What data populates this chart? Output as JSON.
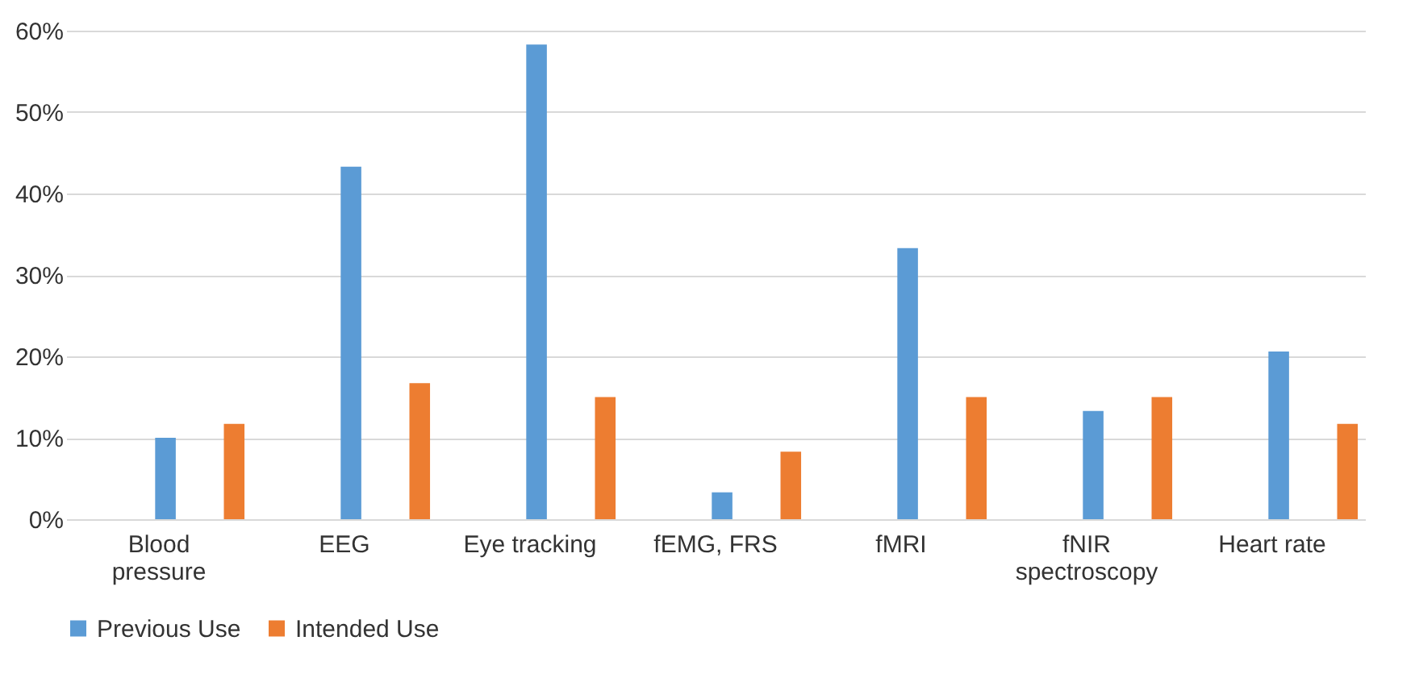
{
  "chart_data": {
    "type": "bar",
    "categories": [
      "Blood pressure",
      "EEG",
      "Eye tracking",
      "fEMG, FRS",
      "fMRI",
      "fNIR spectroscopy",
      "Heart rate"
    ],
    "series": [
      {
        "name": "Previous Use",
        "color": "#5b9bd5",
        "values": [
          10,
          43.3,
          58.3,
          3.3,
          33.3,
          13.3,
          20.6
        ]
      },
      {
        "name": "Intended Use",
        "color": "#ed7d31",
        "values": [
          11.7,
          16.7,
          15,
          8.3,
          15,
          15,
          11.7
        ]
      }
    ],
    "ylim": [
      0,
      60
    ],
    "yticks": [
      {
        "value": 0,
        "label": "0%"
      },
      {
        "value": 10,
        "label": "10%"
      },
      {
        "value": 20,
        "label": "20%"
      },
      {
        "value": 30,
        "label": "30%"
      },
      {
        "value": 40,
        "label": "40%"
      },
      {
        "value": 50,
        "label": "50%"
      },
      {
        "value": 60,
        "label": "60%"
      }
    ],
    "grid": "y",
    "legend": "bottom"
  }
}
